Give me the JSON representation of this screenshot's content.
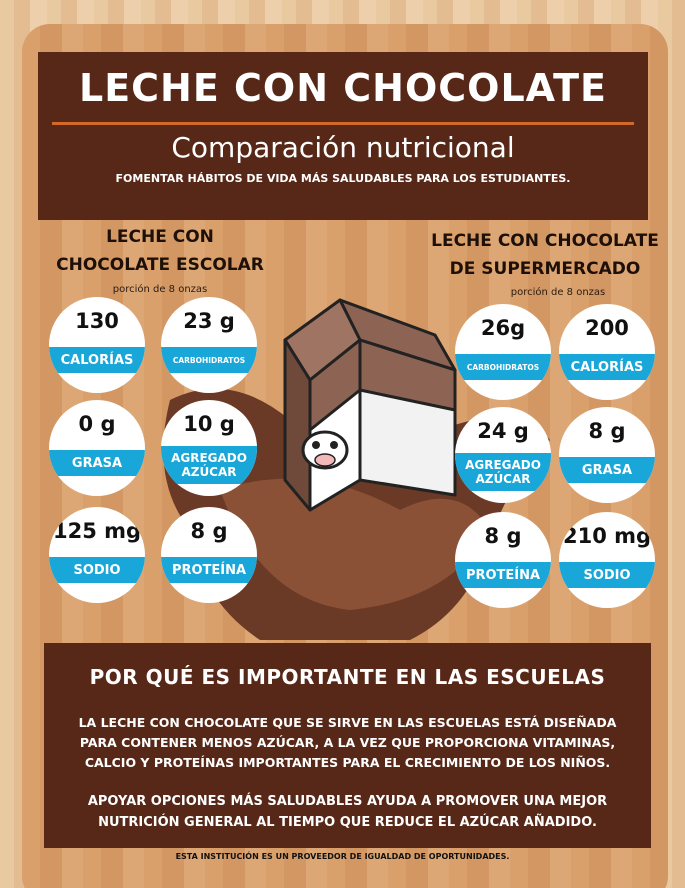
{
  "header": {
    "title": "LECHE CON CHOCOLATE",
    "subtitle": "Comparación nutricional",
    "tagline": "FOMENTAR HÁBITOS DE VIDA MÁS SALUDABLES PARA LOS ESTUDIANTES."
  },
  "left": {
    "heading": [
      "LECHE CON",
      "CHOCOLATE ESCOLAR"
    ],
    "serving": "porción de 8 onzas",
    "nutrients": [
      {
        "value": "130",
        "label": [
          "CALORÍAS"
        ]
      },
      {
        "value": "23 g",
        "label": [
          "CARBOHIDRATOS"
        ]
      },
      {
        "value": "0 g",
        "label": [
          "GRASA"
        ]
      },
      {
        "value": "10 g",
        "label": [
          "AGREGADO",
          "AZÚCAR"
        ]
      },
      {
        "value": "125 mg",
        "label": [
          "SODIO"
        ]
      },
      {
        "value": "8 g",
        "label": [
          "PROTEÍNA"
        ]
      }
    ]
  },
  "right": {
    "heading": [
      "LECHE CON CHOCOLATE",
      "DE SUPERMERCADO"
    ],
    "serving": "porción de 8 onzas",
    "nutrients": [
      {
        "value": "26g",
        "label": [
          "CARBOHIDRATOS"
        ]
      },
      {
        "value": "200",
        "label": [
          "CALORÍAS"
        ]
      },
      {
        "value": "24 g",
        "label": [
          "AGREGADO",
          "AZÚCAR"
        ]
      },
      {
        "value": "8 g",
        "label": [
          "GRASA"
        ]
      },
      {
        "value": "8 g",
        "label": [
          "PROTEÍNA"
        ]
      },
      {
        "value": "210 mg",
        "label": [
          "SODIO"
        ]
      }
    ]
  },
  "importance": {
    "title": "POR QUÉ ES IMPORTANTE EN LAS ESCUELAS",
    "paragraphs": [
      "LA LECHE CON CHOCOLATE QUE SE SIRVE EN LAS ESCUELAS ESTÁ DISEÑADA PARA CONTENER MENOS AZÚCAR, A LA VEZ QUE PROPORCIONA VITAMINAS, CALCIO Y PROTEÍNAS IMPORTANTES PARA EL CRECIMIENTO DE LOS NIÑOS.",
      "APOYAR OPCIONES MÁS SALUDABLES AYUDA A PROMOVER UNA MEJOR NUTRICIÓN GENERAL AL TIEMPO QUE REDUCE EL AZÚCAR AÑADIDO."
    ]
  },
  "footer": "ESTA INSTITUCIÓN ES UN PROVEEDOR DE IGUALDAD DE OPORTUNIDADES."
}
